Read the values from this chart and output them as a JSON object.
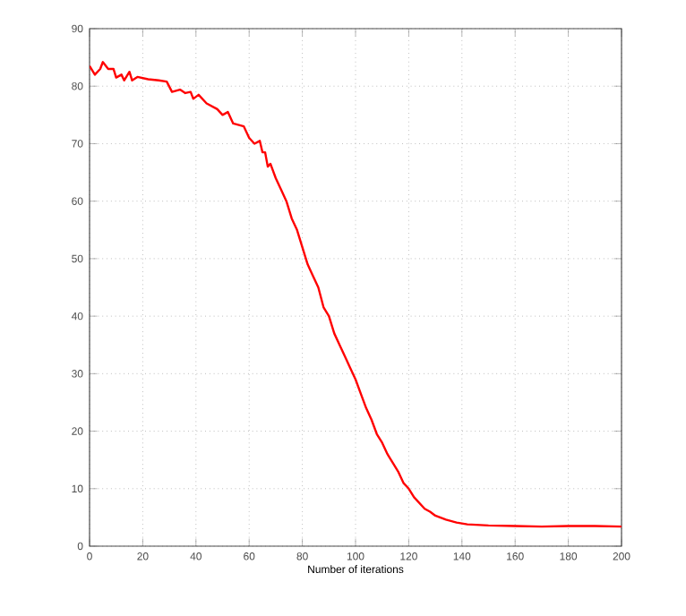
{
  "chart_data": {
    "type": "line",
    "xlabel": "Number of iterations",
    "xlim": [
      0,
      200
    ],
    "ylim": [
      0,
      90
    ],
    "xticks": [
      0,
      20,
      40,
      60,
      80,
      100,
      120,
      140,
      160,
      180,
      200
    ],
    "yticks": [
      0,
      10,
      20,
      30,
      40,
      50,
      60,
      70,
      80,
      90
    ],
    "grid": true,
    "series": [
      {
        "color": "#ff0000",
        "x": [
          0,
          2,
          4,
          5,
          7,
          9,
          10,
          12,
          13,
          15,
          16,
          18,
          22,
          26,
          29,
          31,
          34,
          36,
          38,
          39,
          41,
          44,
          48,
          50,
          52,
          54,
          58,
          60,
          62,
          64,
          65,
          66,
          67,
          68,
          70,
          72,
          74,
          76,
          78,
          80,
          82,
          84,
          86,
          88,
          90,
          92,
          94,
          96,
          98,
          100,
          102,
          104,
          106,
          108,
          110,
          112,
          114,
          116,
          118,
          120,
          122,
          124,
          126,
          128,
          130,
          134,
          138,
          142,
          150,
          160,
          170,
          180,
          190,
          200
        ],
        "values": [
          83.5,
          82,
          83,
          84.2,
          83,
          83,
          81.5,
          82,
          81,
          82.5,
          81,
          81.6,
          81.2,
          81,
          80.8,
          79,
          79.4,
          78.8,
          79,
          77.8,
          78.5,
          77,
          76,
          75,
          75.5,
          73.5,
          73,
          71,
          70,
          70.5,
          68.5,
          68.5,
          66,
          66.5,
          64,
          62,
          60,
          57,
          55,
          52,
          49,
          47,
          45,
          41.5,
          40,
          37,
          35,
          33,
          31,
          29,
          26.5,
          24,
          22,
          19.5,
          18,
          16,
          14.5,
          13,
          11,
          10,
          8.5,
          7.5,
          6.5,
          6,
          5.3,
          4.6,
          4.1,
          3.8,
          3.6,
          3.5,
          3.4,
          3.5,
          3.5,
          3.4
        ]
      }
    ]
  }
}
